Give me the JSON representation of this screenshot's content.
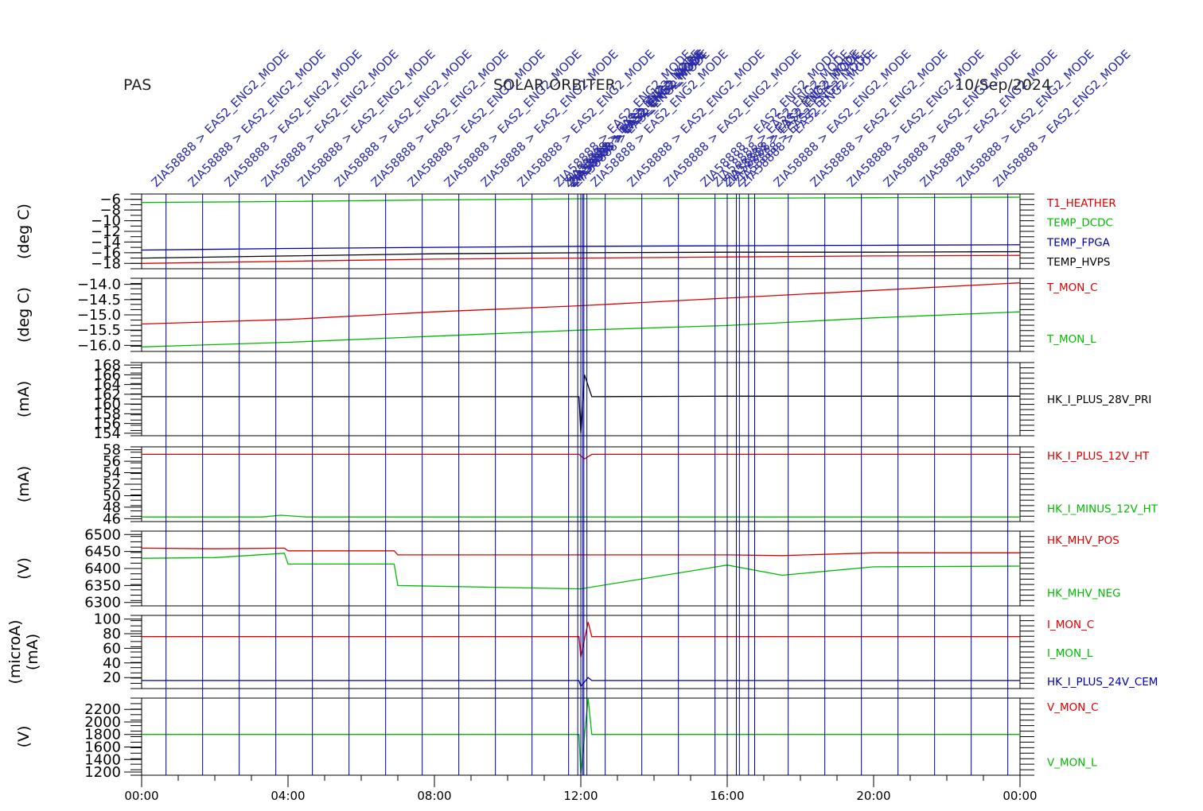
{
  "header": {
    "left": "PAS",
    "center": "SOLAR ORBITER",
    "right": "10/Sep/2024"
  },
  "colors": {
    "red": "#dd0000",
    "green": "#00bb00",
    "blue": "#0000aa",
    "black": "#000000",
    "event_line": "#00008b"
  },
  "events": {
    "label": "ZIA58888 > EAS2_ENG2_MODE",
    "times": [
      "00:40",
      "01:40",
      "02:40",
      "03:40",
      "04:40",
      "05:40",
      "06:40",
      "07:40",
      "08:40",
      "09:40",
      "10:40",
      "11:40",
      "11:55",
      "12:00",
      "12:03",
      "12:05",
      "12:10",
      "12:40",
      "13:40",
      "14:40",
      "15:40",
      "16:00",
      "16:15",
      "16:20",
      "16:35",
      "16:45",
      "17:40",
      "18:40",
      "19:40",
      "20:40",
      "21:40",
      "22:40",
      "23:40"
    ]
  },
  "chart_data": {
    "type": "line",
    "x_axis": {
      "range": [
        "00:00",
        "24:00"
      ],
      "tick_labels": [
        "00:00",
        "04:00",
        "08:00",
        "12:00",
        "16:00",
        "20:00",
        "00:00"
      ]
    },
    "panels": [
      {
        "ylabel": "(deg C)",
        "ylim": [
          -19,
          -5
        ],
        "yticks": [
          -6,
          -8,
          -10,
          -12,
          -14,
          -16,
          -18
        ],
        "ytick_labels": [
          "−6",
          "−8",
          "−10",
          "−12",
          "−14",
          "−16",
          "−18"
        ],
        "series": [
          {
            "name": "T1_HEATHER",
            "color": "#dd0000",
            "x": [
              0,
              4,
              8,
              12,
              16,
              20,
              24
            ],
            "y": [
              -18.0,
              -17.6,
              -17.2,
              -17.0,
              -16.8,
              -16.6,
              -16.5
            ]
          },
          {
            "name": "TEMP_DCDC",
            "color": "#00bb00",
            "x": [
              0,
              4,
              8,
              12,
              16,
              20,
              24
            ],
            "y": [
              -6.6,
              -6.4,
              -6.1,
              -5.9,
              -5.8,
              -5.7,
              -5.6
            ]
          },
          {
            "name": "TEMP_FPGA",
            "color": "#0000aa",
            "x": [
              0,
              4,
              8,
              12,
              16,
              20,
              24
            ],
            "y": [
              -15.5,
              -15.2,
              -15.0,
              -14.8,
              -14.7,
              -14.6,
              -14.5
            ]
          },
          {
            "name": "TEMP_HVPS",
            "color": "#000000",
            "x": [
              0,
              4,
              8,
              12,
              16,
              20,
              24
            ],
            "y": [
              -17.0,
              -16.6,
              -16.2,
              -16.0,
              -15.9,
              -15.9,
              -15.8
            ]
          }
        ]
      },
      {
        "ylabel": "(deg C)",
        "ylim": [
          -16.2,
          -13.8
        ],
        "yticks": [
          -14.0,
          -14.5,
          -15.0,
          -15.5,
          -16.0
        ],
        "ytick_labels": [
          "−14.0",
          "−14.5",
          "−15.0",
          "−15.5",
          "−16.0"
        ],
        "series": [
          {
            "name": "T_MON_C",
            "color": "#dd0000",
            "x": [
              0,
              4,
              8,
              12,
              16,
              20,
              24
            ],
            "y": [
              -15.3,
              -15.15,
              -14.9,
              -14.7,
              -14.45,
              -14.2,
              -13.95
            ]
          },
          {
            "name": "T_MON_L",
            "color": "#00bb00",
            "x": [
              0,
              4,
              8,
              12,
              16,
              20,
              24
            ],
            "y": [
              -16.05,
              -15.9,
              -15.7,
              -15.5,
              -15.35,
              -15.1,
              -14.9
            ]
          }
        ]
      },
      {
        "ylabel": "(mA)",
        "ylim": [
          153.5,
          168.5
        ],
        "yticks": [
          154,
          156,
          158,
          160,
          162,
          164,
          166,
          168
        ],
        "ytick_labels": [
          "154",
          "156",
          "158",
          "160",
          "162",
          "164",
          "166",
          "168"
        ],
        "series": [
          {
            "name": "HK_I_PLUS_28V_PRI",
            "color": "#000000",
            "x": [
              0,
              4,
              8,
              11.95,
              12.0,
              12.1,
              12.3,
              16,
              20,
              24
            ],
            "y": [
              161.5,
              161.5,
              161.5,
              161.5,
              154.0,
              166.0,
              161.5,
              161.6,
              161.6,
              161.6
            ]
          }
        ]
      },
      {
        "ylabel": "(mA)",
        "ylim": [
          45.5,
          58.5
        ],
        "yticks": [
          46,
          48,
          50,
          52,
          54,
          56,
          58
        ],
        "ytick_labels": [
          "46",
          "48",
          "50",
          "52",
          "54",
          "56",
          "58"
        ],
        "series": [
          {
            "name": "HK_I_PLUS_12V_HT",
            "color": "#dd0000",
            "x": [
              0,
              4,
              8,
              11.95,
              12.1,
              12.3,
              16,
              20,
              24
            ],
            "y": [
              57.2,
              57.2,
              57.2,
              57.2,
              56.4,
              57.2,
              57.2,
              57.2,
              57.2
            ]
          },
          {
            "name": "HK_I_MINUS_12V_HT",
            "color": "#00bb00",
            "x": [
              0,
              3.3,
              3.8,
              4.5,
              8,
              12,
              16,
              20,
              24
            ],
            "y": [
              46.3,
              46.3,
              46.6,
              46.3,
              46.3,
              46.3,
              46.3,
              46.3,
              46.3
            ]
          }
        ]
      },
      {
        "ylabel": "(V)",
        "ylim": [
          6290,
          6510
        ],
        "yticks": [
          6300,
          6350,
          6400,
          6450,
          6500
        ],
        "ytick_labels": [
          "6300",
          "6350",
          "6400",
          "6450",
          "6500"
        ],
        "series": [
          {
            "name": "HK_MHV_POS",
            "color": "#dd0000",
            "x": [
              0,
              2,
              3.9,
              4.0,
              6.9,
              7.0,
              12,
              16,
              17.5,
              20,
              24
            ],
            "y": [
              6460,
              6458,
              6460,
              6452,
              6452,
              6440,
              6440,
              6440,
              6438,
              6446,
              6446
            ]
          },
          {
            "name": "HK_MHV_NEG",
            "color": "#00bb00",
            "x": [
              0,
              2,
              3.9,
              4.0,
              6.9,
              7.0,
              12,
              16,
              17.5,
              20,
              24
            ],
            "y": [
              6430,
              6432,
              6445,
              6413,
              6413,
              6350,
              6340,
              6410,
              6380,
              6405,
              6407
            ]
          }
        ]
      },
      {
        "ylabel": "(microA)\n(mA)",
        "ylim": [
          5,
          105
        ],
        "yticks": [
          20,
          40,
          60,
          80,
          100
        ],
        "ytick_labels": [
          "20",
          "40",
          "60",
          "80",
          "100"
        ],
        "series": [
          {
            "name": "I_MON_C",
            "color": "#dd0000",
            "x": [
              0,
              8,
              11.95,
              12.0,
              12.2,
              12.3,
              16,
              20,
              24
            ],
            "y": [
              76,
              76,
              76,
              48,
              96,
              76,
              76,
              76,
              76
            ]
          },
          {
            "name": "I_MON_L",
            "color": "#00bb00",
            "x": [
              0,
              24
            ],
            "y": [
              null,
              null
            ]
          },
          {
            "name": "HK_I_PLUS_24V_CEM",
            "color": "#0000aa",
            "x": [
              0,
              8,
              11.95,
              12.0,
              12.2,
              12.3,
              16,
              20,
              24
            ],
            "y": [
              16,
              16,
              16,
              8,
              20,
              16,
              16,
              16,
              16
            ]
          }
        ]
      },
      {
        "ylabel": "(V)",
        "ylim": [
          1150,
          2380
        ],
        "yticks": [
          1200,
          1400,
          1600,
          1800,
          2000,
          2200
        ],
        "ytick_labels": [
          "1200",
          "1400",
          "1600",
          "1800",
          "2000",
          "2200"
        ],
        "series": [
          {
            "name": "V_MON_C",
            "color": "#dd0000",
            "x": [
              0,
              24
            ],
            "y": [
              null,
              null
            ]
          },
          {
            "name": "V_MON_L",
            "color": "#00bb00",
            "x": [
              0,
              11.95,
              12.0,
              12.2,
              12.3,
              24
            ],
            "y": [
              1800,
              1800,
              1160,
              2380,
              1800,
              1800
            ]
          }
        ]
      }
    ]
  }
}
